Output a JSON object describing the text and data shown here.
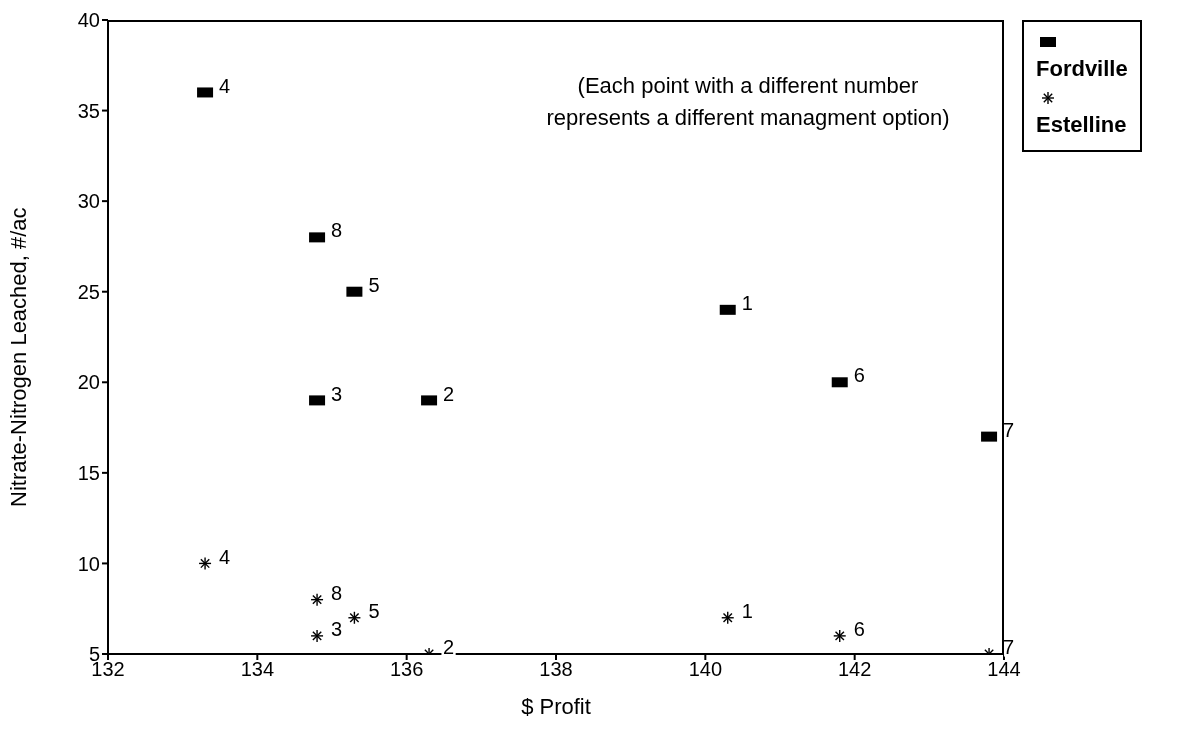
{
  "chart_data": {
    "type": "scatter",
    "xlabel": "$ Profit",
    "ylabel": "Nitrate-Nitrogen Leached, #/ac",
    "xlim": [
      132,
      144
    ],
    "xticks": [
      132,
      134,
      136,
      138,
      140,
      142,
      144
    ],
    "ylim": [
      5,
      40
    ],
    "yticks": [
      5,
      10,
      15,
      20,
      25,
      30,
      35,
      40
    ],
    "grid": false,
    "legend": "top right",
    "series": [
      {
        "name": "Fordville",
        "color": "#000000",
        "marker": "square",
        "x": [
          140.3,
          136.3,
          134.8,
          133.3,
          135.3,
          141.8,
          143.8,
          134.8
        ],
        "values": [
          24,
          19,
          19,
          36,
          25,
          20,
          17,
          28
        ]
      },
      {
        "name": "Estelline",
        "color": "#000000",
        "marker": "cross",
        "x": [
          140.3,
          136.3,
          134.8,
          133.3,
          135.3,
          141.8,
          143.8,
          134.8
        ],
        "values": [
          7,
          5,
          6,
          10,
          7,
          6,
          5,
          8
        ]
      }
    ],
    "annotations": [
      "(Each point with a different number represents a different managment option)",
      {
        "text": "1",
        "x": 140.3,
        "y": 24
      },
      {
        "text": "2",
        "x": 136.3,
        "y": 19
      },
      {
        "text": "3",
        "x": 134.8,
        "y": 19
      },
      {
        "text": "4",
        "x": 133.3,
        "y": 36
      },
      {
        "text": "5",
        "x": 135.3,
        "y": 25
      },
      {
        "text": "6",
        "x": 141.8,
        "y": 20
      },
      {
        "text": "7",
        "x": 143.8,
        "y": 17
      },
      {
        "text": "8",
        "x": 134.8,
        "y": 28
      },
      {
        "text": "1",
        "x": 140.3,
        "y": 7
      },
      {
        "text": "2",
        "x": 136.3,
        "y": 5
      },
      {
        "text": "3",
        "x": 134.8,
        "y": 6
      },
      {
        "text": "4",
        "x": 133.3,
        "y": 10
      },
      {
        "text": "5",
        "x": 135.3,
        "y": 7
      },
      {
        "text": "6",
        "x": 141.8,
        "y": 6
      },
      {
        "text": "7",
        "x": 143.8,
        "y": 5
      },
      {
        "text": "8",
        "x": 134.8,
        "y": 8
      }
    ]
  }
}
